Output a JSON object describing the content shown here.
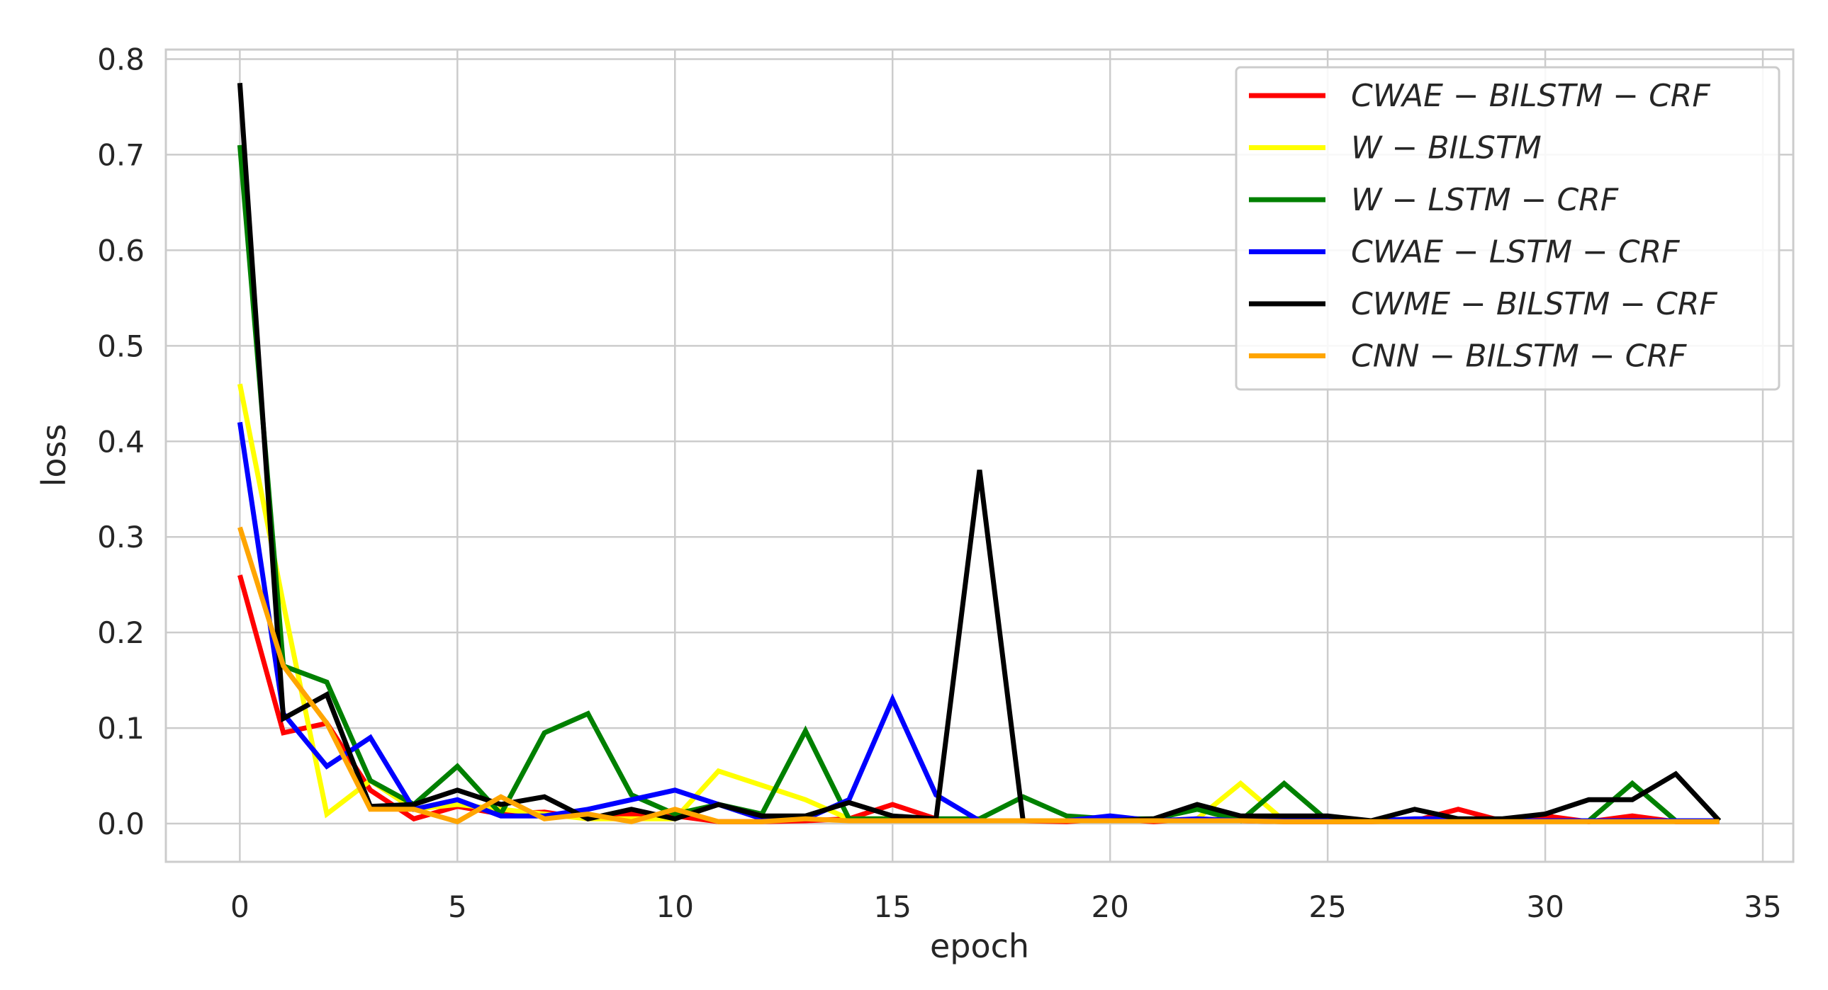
{
  "chart_data": {
    "type": "line",
    "xlabel": "epoch",
    "ylabel": "loss",
    "xlim": [
      -1.7,
      35.7
    ],
    "ylim": [
      -0.04,
      0.81
    ],
    "xticks": [
      "0",
      "5",
      "10",
      "15",
      "20",
      "25",
      "30",
      "35"
    ],
    "yticks": [
      "0.0",
      "0.1",
      "0.2",
      "0.3",
      "0.4",
      "0.5",
      "0.6",
      "0.7",
      "0.8"
    ],
    "grid": true,
    "legend_position": "top-right",
    "x": [
      0,
      1,
      2,
      3,
      4,
      5,
      6,
      7,
      8,
      9,
      10,
      11,
      12,
      13,
      14,
      15,
      16,
      17,
      18,
      19,
      20,
      21,
      22,
      23,
      24,
      25,
      26,
      27,
      28,
      29,
      30,
      31,
      32,
      33,
      34
    ],
    "series": [
      {
        "name": "CWAE − BILSTM − CRF",
        "color": "#ff0000",
        "values": [
          0.26,
          0.095,
          0.105,
          0.035,
          0.005,
          0.018,
          0.01,
          0.012,
          0.005,
          0.01,
          0.008,
          0.002,
          0.002,
          0.003,
          0.005,
          0.02,
          0.005,
          0.003,
          0.003,
          0.002,
          0.005,
          0.002,
          0.005,
          0.003,
          0.002,
          0.002,
          0.002,
          0.003,
          0.015,
          0.003,
          0.008,
          0.002,
          0.008,
          0.002,
          0.002
        ]
      },
      {
        "name": "W − BILSTM",
        "color": "#ffff00",
        "values": [
          0.46,
          0.23,
          0.01,
          0.045,
          0.015,
          0.02,
          0.015,
          0.01,
          0.005,
          0.005,
          0.005,
          0.055,
          0.04,
          0.025,
          0.005,
          0.005,
          0.003,
          0.003,
          0.003,
          0.003,
          0.003,
          0.003,
          0.005,
          0.042,
          0.003,
          0.003,
          0.003,
          0.003,
          0.003,
          0.003,
          0.003,
          0.003,
          0.003,
          0.003,
          0.003
        ]
      },
      {
        "name": "W − LSTM − CRF",
        "color": "#008000",
        "values": [
          0.71,
          0.165,
          0.148,
          0.045,
          0.02,
          0.06,
          0.01,
          0.095,
          0.115,
          0.03,
          0.01,
          0.02,
          0.01,
          0.097,
          0.005,
          0.005,
          0.005,
          0.005,
          0.028,
          0.008,
          0.005,
          0.005,
          0.015,
          0.003,
          0.042,
          0.003,
          0.003,
          0.003,
          0.003,
          0.003,
          0.003,
          0.003,
          0.042,
          0.003,
          0.003
        ]
      },
      {
        "name": "CWAE − LSTM − CRF",
        "color": "#0000ff",
        "values": [
          0.42,
          0.115,
          0.06,
          0.09,
          0.015,
          0.025,
          0.008,
          0.008,
          0.015,
          0.025,
          0.035,
          0.02,
          0.005,
          0.005,
          0.025,
          0.13,
          0.03,
          0.003,
          0.003,
          0.003,
          0.008,
          0.003,
          0.005,
          0.003,
          0.003,
          0.003,
          0.003,
          0.005,
          0.005,
          0.003,
          0.003,
          0.003,
          0.003,
          0.003,
          0.003
        ]
      },
      {
        "name": "CWME − BILSTM − CRF",
        "color": "#000000",
        "values": [
          0.775,
          0.11,
          0.135,
          0.018,
          0.02,
          0.035,
          0.02,
          0.028,
          0.005,
          0.015,
          0.005,
          0.02,
          0.008,
          0.008,
          0.022,
          0.008,
          0.005,
          0.37,
          0.003,
          0.003,
          0.003,
          0.005,
          0.02,
          0.008,
          0.008,
          0.008,
          0.003,
          0.015,
          0.005,
          0.005,
          0.01,
          0.025,
          0.025,
          0.052,
          0.003
        ]
      },
      {
        "name": "CNN − BILSTM − CRF",
        "color": "#ffa500",
        "values": [
          0.31,
          0.165,
          0.105,
          0.015,
          0.015,
          0.002,
          0.028,
          0.005,
          0.01,
          0.002,
          0.015,
          0.002,
          0.002,
          0.005,
          0.003,
          0.003,
          0.003,
          0.003,
          0.003,
          0.003,
          0.003,
          0.003,
          0.003,
          0.003,
          0.002,
          0.002,
          0.002,
          0.002,
          0.002,
          0.002,
          0.002,
          0.002,
          0.002,
          0.002,
          0.002
        ]
      }
    ]
  }
}
